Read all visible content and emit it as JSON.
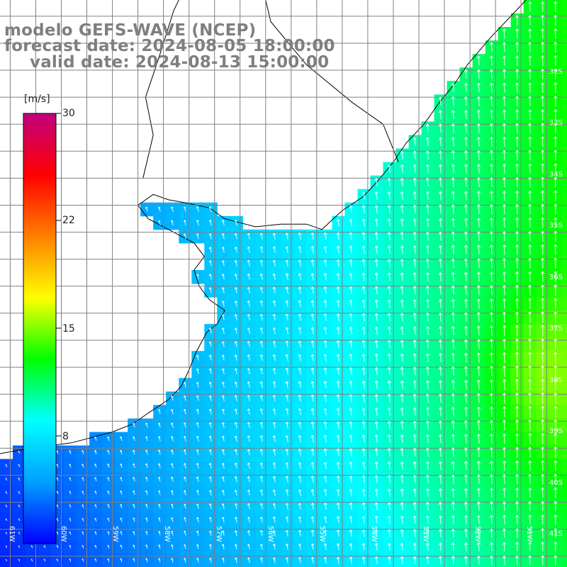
{
  "titles": {
    "model": "modelo GEFS-WAVE (NCEP)",
    "forecast": "forecast date: 2024-08-05 18:00:00",
    "valid": "valid date: 2024-08-13 15:00:00"
  },
  "colorbar": {
    "unit": "[m/s]",
    "ticks": [
      "30",
      "22",
      "15",
      "8"
    ],
    "min": 0,
    "max": 30,
    "colors": [
      "#0000ff",
      "#00a0ff",
      "#00ffff",
      "#00ff00",
      "#ffff00",
      "#ff8000",
      "#ff0000",
      "#c00080"
    ]
  },
  "lat_labels": [
    "32S",
    "33S",
    "34S",
    "35S",
    "36S",
    "37S",
    "38S",
    "39S",
    "40S",
    "41S"
  ],
  "lon_labels": [
    "61W",
    "60W",
    "59W",
    "58W",
    "57W",
    "56W",
    "55W",
    "54W",
    "53W",
    "52W",
    "51W"
  ],
  "map": {
    "extent": {
      "lon_min": -61.2,
      "lon_max": -50.1,
      "lat_min": -41.2,
      "lat_max": -30.7
    },
    "land_color": "#ffffff",
    "grid_color": "#808080",
    "vector_color": "#ffffff",
    "wind_field": {
      "variable": "wind speed",
      "units": "m/s",
      "range": [
        0,
        20
      ]
    }
  }
}
